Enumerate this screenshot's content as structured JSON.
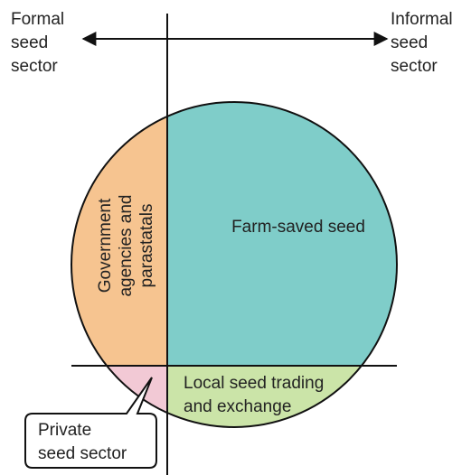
{
  "left_label": [
    "Formal",
    "seed",
    "sector"
  ],
  "right_label": [
    "Informal",
    "seed",
    "sector"
  ],
  "regions": {
    "farm_saved": [
      "Farm-saved seed"
    ],
    "government": [
      "Government",
      "agencies and",
      "parastatals"
    ],
    "local_trading": [
      "Local seed trading",
      "and exchange"
    ],
    "private": [
      "Private",
      "seed sector"
    ]
  }
}
